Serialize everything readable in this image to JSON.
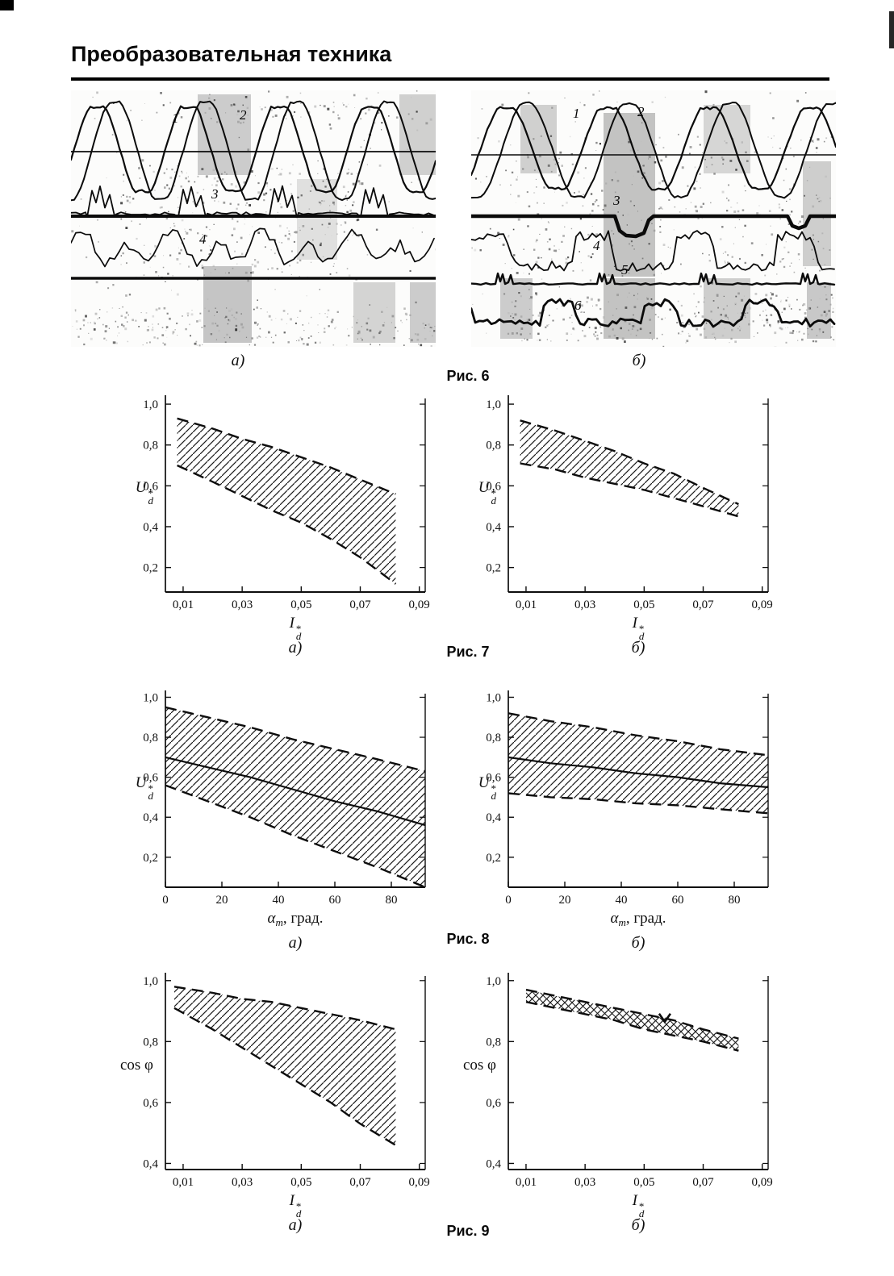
{
  "header": {
    "title": "Преобразовательная техника"
  },
  "figures": {
    "fig6": {
      "caption": "Рис. 6",
      "panel_a_label": "а)",
      "panel_b_label": "б)",
      "panel_a_traces": [
        "1",
        "2",
        "3",
        "4"
      ],
      "panel_b_traces": [
        "1",
        "2",
        "3",
        "4",
        "5",
        "6"
      ]
    },
    "fig7": {
      "caption": "Рис. 7"
    },
    "fig8": {
      "caption": "Рис. 8"
    },
    "fig9": {
      "caption": "Рис. 9"
    }
  },
  "chart_data": [
    {
      "id": "fig7a",
      "figure": "Рис. 7",
      "panel": "а)",
      "type": "area",
      "xlabel": {
        "main": "I",
        "sup": "*",
        "sub": "d"
      },
      "ylabel": {
        "main": "U",
        "sup": "*",
        "sub": "d"
      },
      "xlim": [
        0.004,
        0.092
      ],
      "ylim": [
        0.08,
        1.02
      ],
      "x_ticks": [
        0.01,
        0.03,
        0.05,
        0.07,
        0.09
      ],
      "x_tick_labels": [
        "0,01",
        "0,03",
        "0,05",
        "0,07",
        "0,09"
      ],
      "y_ticks": [
        0.2,
        0.4,
        0.6,
        0.8,
        1.0
      ],
      "y_tick_labels": [
        "0,2",
        "0,4",
        "0,6",
        "0,8",
        "1,0"
      ],
      "hatch": "diagonal",
      "band": {
        "x": [
          0.008,
          0.02,
          0.03,
          0.04,
          0.05,
          0.06,
          0.07,
          0.082
        ],
        "upper": [
          0.93,
          0.88,
          0.83,
          0.79,
          0.74,
          0.69,
          0.63,
          0.56
        ],
        "lower": [
          0.7,
          0.62,
          0.55,
          0.48,
          0.42,
          0.34,
          0.25,
          0.12
        ]
      }
    },
    {
      "id": "fig7b",
      "figure": "Рис. 7",
      "panel": "б)",
      "type": "area",
      "xlabel": {
        "main": "I",
        "sup": "*",
        "sub": "d"
      },
      "ylabel": {
        "main": "U",
        "sup": "*",
        "sub": "d"
      },
      "xlim": [
        0.004,
        0.092
      ],
      "ylim": [
        0.08,
        1.02
      ],
      "x_ticks": [
        0.01,
        0.03,
        0.05,
        0.07,
        0.09
      ],
      "x_tick_labels": [
        "0,01",
        "0,03",
        "0,05",
        "0,07",
        "0,09"
      ],
      "y_ticks": [
        0.2,
        0.4,
        0.6,
        0.8,
        1.0
      ],
      "y_tick_labels": [
        "0,2",
        "0,4",
        "0,6",
        "0,8",
        "1,0"
      ],
      "hatch": "diagonal",
      "band": {
        "x": [
          0.008,
          0.02,
          0.03,
          0.04,
          0.05,
          0.06,
          0.07,
          0.082
        ],
        "upper": [
          0.92,
          0.87,
          0.82,
          0.77,
          0.71,
          0.66,
          0.59,
          0.51
        ],
        "lower": [
          0.71,
          0.68,
          0.64,
          0.61,
          0.58,
          0.54,
          0.5,
          0.45
        ]
      }
    },
    {
      "id": "fig8a",
      "figure": "Рис. 8",
      "panel": "а)",
      "type": "area",
      "xlabel": {
        "main": "α",
        "sub": "т",
        "rest": ", град."
      },
      "ylabel": {
        "main": "U",
        "sup": "*",
        "sub": "d"
      },
      "xlim": [
        0,
        92
      ],
      "ylim": [
        0.05,
        1.01
      ],
      "x_ticks": [
        0,
        20,
        40,
        60,
        80
      ],
      "x_tick_labels": [
        "0",
        "20",
        "40",
        "60",
        "80"
      ],
      "y_ticks": [
        0.2,
        0.4,
        0.6,
        0.8,
        1.0
      ],
      "y_tick_labels": [
        "0,2",
        "0,4",
        "0,6",
        "0,8",
        "1,0"
      ],
      "hatch": "diagonal",
      "band": {
        "x": [
          0,
          15,
          30,
          45,
          60,
          75,
          92
        ],
        "upper": [
          0.95,
          0.9,
          0.85,
          0.79,
          0.74,
          0.69,
          0.63
        ],
        "lower": [
          0.56,
          0.48,
          0.4,
          0.31,
          0.23,
          0.15,
          0.05
        ]
      },
      "center_line": {
        "x": [
          0,
          15,
          30,
          45,
          60,
          75,
          92
        ],
        "y": [
          0.7,
          0.65,
          0.6,
          0.54,
          0.48,
          0.43,
          0.36
        ]
      }
    },
    {
      "id": "fig8b",
      "figure": "Рис. 8",
      "panel": "б)",
      "type": "area",
      "xlabel": {
        "main": "α",
        "sub": "т",
        "rest": ", град."
      },
      "ylabel": {
        "main": "U",
        "sup": "*",
        "sub": "d"
      },
      "xlim": [
        0,
        92
      ],
      "ylim": [
        0.05,
        1.01
      ],
      "x_ticks": [
        0,
        20,
        40,
        60,
        80
      ],
      "x_tick_labels": [
        "0",
        "20",
        "40",
        "60",
        "80"
      ],
      "y_ticks": [
        0.2,
        0.4,
        0.6,
        0.8,
        1.0
      ],
      "y_tick_labels": [
        "0,2",
        "0,4",
        "0,6",
        "0,8",
        "1,0"
      ],
      "hatch": "diagonal",
      "band": {
        "x": [
          0,
          15,
          30,
          45,
          60,
          75,
          92
        ],
        "upper": [
          0.92,
          0.88,
          0.85,
          0.81,
          0.78,
          0.74,
          0.71
        ],
        "lower": [
          0.52,
          0.5,
          0.49,
          0.47,
          0.46,
          0.44,
          0.42
        ]
      },
      "center_line": {
        "x": [
          0,
          15,
          30,
          45,
          60,
          75,
          92
        ],
        "y": [
          0.7,
          0.67,
          0.65,
          0.62,
          0.6,
          0.57,
          0.55
        ]
      }
    },
    {
      "id": "fig9a",
      "figure": "Рис. 9",
      "panel": "а)",
      "type": "area",
      "xlabel": {
        "main": "I",
        "sup": "*",
        "sub": "d"
      },
      "ylabel": {
        "main": "cos φ"
      },
      "xlim": [
        0.004,
        0.092
      ],
      "ylim": [
        0.38,
        1.01
      ],
      "x_ticks": [
        0.01,
        0.03,
        0.05,
        0.07,
        0.09
      ],
      "x_tick_labels": [
        "0,01",
        "0,03",
        "0,05",
        "0,07",
        "0,09"
      ],
      "y_ticks": [
        0.4,
        0.6,
        0.8,
        1.0
      ],
      "y_tick_labels": [
        "0,4",
        "0,6",
        "0,8",
        "1,0"
      ],
      "hatch": "diagonal",
      "band": {
        "x": [
          0.007,
          0.02,
          0.03,
          0.04,
          0.05,
          0.06,
          0.07,
          0.082
        ],
        "upper": [
          0.98,
          0.96,
          0.94,
          0.93,
          0.91,
          0.89,
          0.87,
          0.84
        ],
        "lower": [
          0.91,
          0.84,
          0.78,
          0.72,
          0.66,
          0.6,
          0.53,
          0.46
        ]
      }
    },
    {
      "id": "fig9b",
      "figure": "Рис. 9",
      "panel": "б)",
      "type": "area",
      "xlabel": {
        "main": "I",
        "sup": "*",
        "sub": "d"
      },
      "ylabel": {
        "main": "cos φ"
      },
      "xlim": [
        0.004,
        0.092
      ],
      "ylim": [
        0.38,
        1.01
      ],
      "x_ticks": [
        0.01,
        0.03,
        0.05,
        0.07,
        0.09
      ],
      "x_tick_labels": [
        "0,01",
        "0,03",
        "0,05",
        "0,07",
        "0,09"
      ],
      "y_ticks": [
        0.4,
        0.6,
        0.8,
        1.0
      ],
      "y_tick_labels": [
        "0,4",
        "0,6",
        "0,8",
        "1,0"
      ],
      "hatch": "cross",
      "band": {
        "x": [
          0.01,
          0.02,
          0.03,
          0.04,
          0.05,
          0.06,
          0.07,
          0.082
        ],
        "upper": [
          0.97,
          0.95,
          0.93,
          0.91,
          0.89,
          0.87,
          0.84,
          0.81
        ],
        "lower": [
          0.93,
          0.91,
          0.89,
          0.87,
          0.84,
          0.82,
          0.8,
          0.77
        ]
      },
      "marker": {
        "x": 0.057,
        "y": 0.865
      }
    }
  ]
}
